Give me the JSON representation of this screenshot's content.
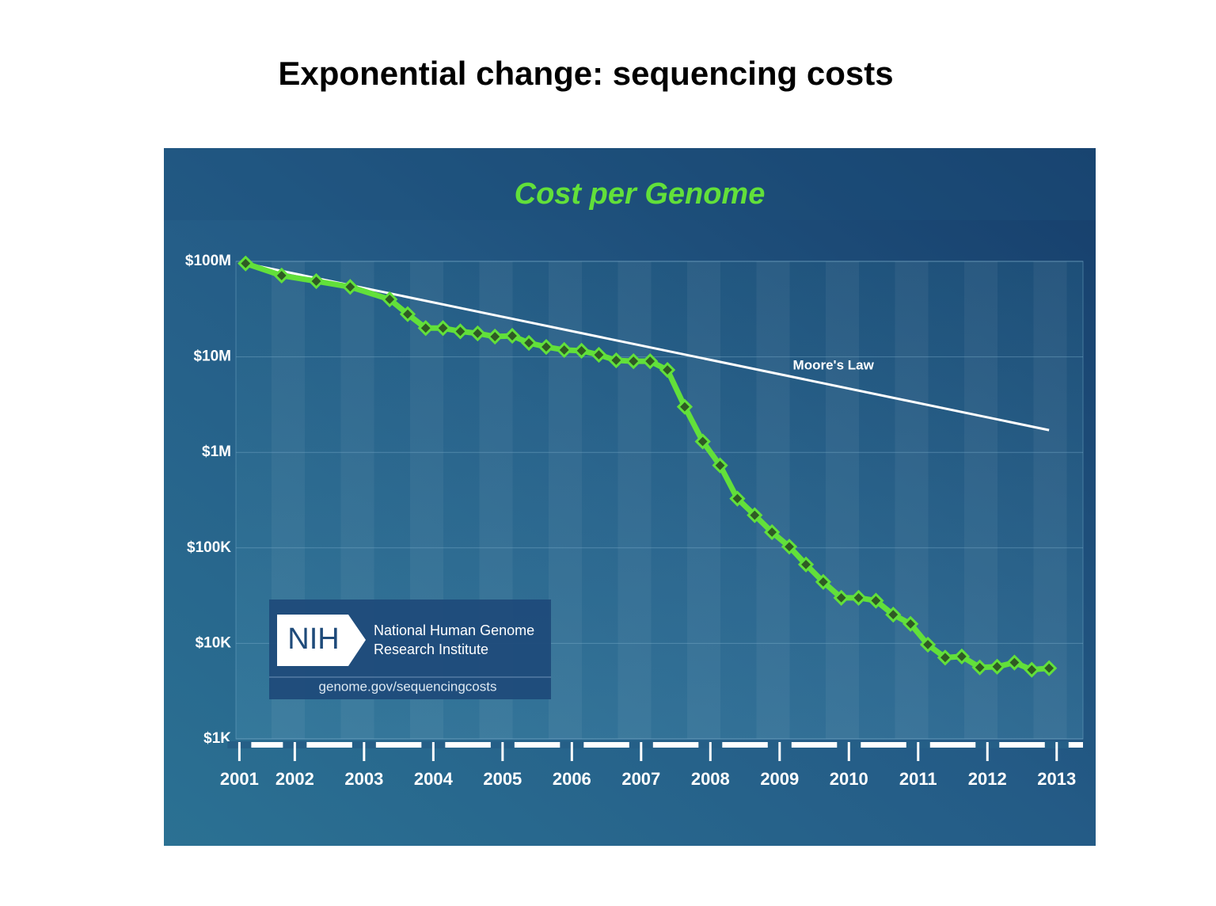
{
  "title": "Exponential change: sequencing costs",
  "chart_data": {
    "type": "line",
    "title": "Cost per Genome",
    "log_scale": true,
    "grid": true,
    "xlim": [
      2001.15,
      2013.38
    ],
    "xticks": [
      {
        "value": 2001.2,
        "label": "2001"
      },
      2002,
      2003,
      2004,
      2005,
      2006,
      2007,
      2008,
      2009,
      2010,
      2011,
      2012,
      2013
    ],
    "ylim": [
      1000,
      100000000
    ],
    "yticks": [
      {
        "value": 1000,
        "label": "$1K"
      },
      {
        "value": 10000,
        "label": "$10K"
      },
      {
        "value": 100000,
        "label": "$100K"
      },
      {
        "value": 1000000,
        "label": "$1M"
      },
      {
        "value": 10000000,
        "label": "$10M"
      },
      {
        "value": 100000000,
        "label": "$100M"
      }
    ],
    "series": [
      {
        "name": "Cost per Genome",
        "color": "#62e03a",
        "x": [
          2001.29,
          2001.81,
          2002.31,
          2002.8,
          2003.37,
          2003.63,
          2003.89,
          2004.14,
          2004.39,
          2004.64,
          2004.89,
          2005.14,
          2005.38,
          2005.63,
          2005.89,
          2006.14,
          2006.39,
          2006.64,
          2006.89,
          2007.13,
          2007.38,
          2007.63,
          2007.89,
          2008.14,
          2008.39,
          2008.64,
          2008.89,
          2009.14,
          2009.38,
          2009.63,
          2009.89,
          2010.14,
          2010.39,
          2010.64,
          2010.89,
          2011.14,
          2011.39,
          2011.63,
          2011.89,
          2012.14,
          2012.39,
          2012.64,
          2012.89
        ],
        "values": [
          95000000,
          71000000,
          62000000,
          54000000,
          40000000,
          28000000,
          20000000,
          20000000,
          18500000,
          17600000,
          16300000,
          16600000,
          14000000,
          12700000,
          11800000,
          11600000,
          10500000,
          9200000,
          9000000,
          9000000,
          7300000,
          3000000,
          1300000,
          730000,
          328000,
          220000,
          146000,
          103000,
          67000,
          44000,
          30000,
          30000,
          28000,
          20000,
          16000,
          9700,
          7100,
          7300,
          5600,
          5700,
          6300,
          5300,
          5500
        ]
      },
      {
        "name": "Moore's Law",
        "color": "#ffffff",
        "x": [
          2001.29,
          2012.89
        ],
        "values": [
          95000000,
          1710000
        ]
      }
    ]
  },
  "logo": {
    "mark": "NIH",
    "line1": "National Human Genome",
    "line2": "Research Institute",
    "url": "genome.gov/sequencingcosts"
  }
}
